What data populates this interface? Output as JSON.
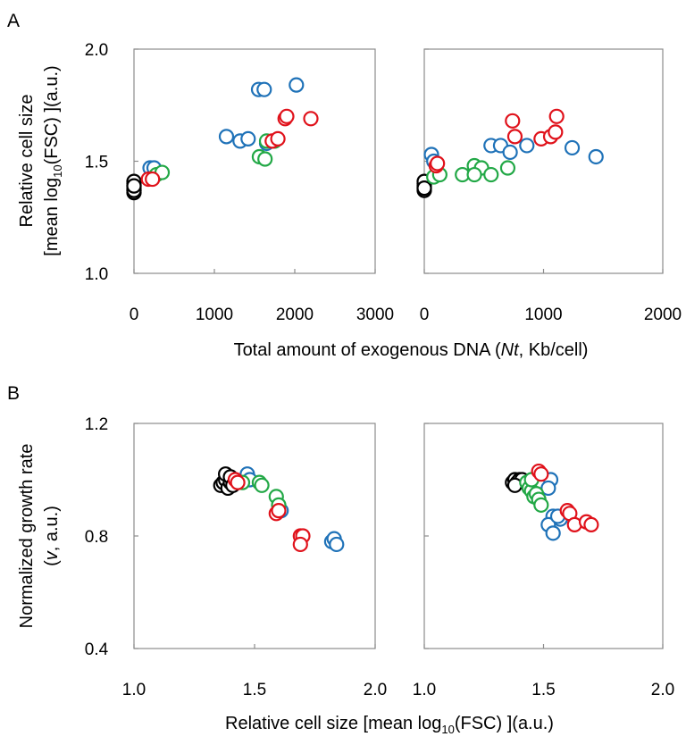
{
  "figure": {
    "panel_a_label": "A",
    "panel_b_label": "B"
  },
  "axis_titles": {
    "a_y_line1": "Relative cell size",
    "a_y_line2_pre": "[mean log",
    "a_y_line2_sub": "10",
    "a_y_line2_post": "(FSC) ](a.u.)",
    "a_x_pre": "Total amount of exogenous DNA (",
    "a_x_italic": "Nt",
    "a_x_post": ", Kb/cell)",
    "b_y_line1": "Normalized growth rate",
    "b_y_line2_pre": "(",
    "b_y_line2_italic": "v",
    "b_y_line2_post": ", a.u.)",
    "b_x_pre": "Relative cell size [mean log",
    "b_x_sub": "10",
    "b_x_post": "(FSC) ](a.u.)"
  },
  "colors": {
    "black": "#000000",
    "blue": "#1f72b8",
    "green": "#22a846",
    "red": "#e0121b",
    "frame": "#8c8c8c"
  },
  "chart_data": [
    {
      "id": "A-left",
      "type": "scatter",
      "xlim": [
        0,
        3000
      ],
      "ylim": [
        1.0,
        2.0
      ],
      "xticks": [
        "0",
        "1000",
        "2000",
        "3000"
      ],
      "yticks": [
        "1.0",
        "1.5",
        "2.0"
      ],
      "grid": false,
      "series": [
        {
          "color": "black",
          "points": [
            [
              0,
              1.36
            ],
            [
              0,
              1.37
            ],
            [
              0,
              1.38
            ],
            [
              0,
              1.39
            ],
            [
              0,
              1.4
            ],
            [
              0,
              1.41
            ],
            [
              0,
              1.37
            ],
            [
              0,
              1.39
            ]
          ]
        },
        {
          "color": "blue",
          "points": [
            [
              200,
              1.47
            ],
            [
              250,
              1.47
            ],
            [
              1150,
              1.61
            ],
            [
              1320,
              1.59
            ],
            [
              1420,
              1.6
            ],
            [
              1550,
              1.82
            ],
            [
              1620,
              1.82
            ],
            [
              2020,
              1.84
            ],
            [
              1650,
              1.58
            ]
          ]
        },
        {
          "color": "green",
          "points": [
            [
              280,
              1.44
            ],
            [
              350,
              1.45
            ],
            [
              1560,
              1.52
            ],
            [
              1630,
              1.51
            ],
            [
              1650,
              1.59
            ],
            [
              1750,
              1.59
            ]
          ]
        },
        {
          "color": "red",
          "points": [
            [
              180,
              1.42
            ],
            [
              230,
              1.42
            ],
            [
              1720,
              1.59
            ],
            [
              1790,
              1.6
            ],
            [
              1880,
              1.69
            ],
            [
              1900,
              1.7
            ],
            [
              2200,
              1.69
            ]
          ]
        }
      ]
    },
    {
      "id": "A-right",
      "type": "scatter",
      "xlim": [
        0,
        2000
      ],
      "ylim": [
        1.0,
        2.0
      ],
      "xticks": [
        "0",
        "1000",
        "2000"
      ],
      "yticks": [
        "1.0",
        "1.5",
        "2.0"
      ],
      "grid": false,
      "series": [
        {
          "color": "black",
          "points": [
            [
              0,
              1.37
            ],
            [
              0,
              1.38
            ],
            [
              0,
              1.39
            ],
            [
              0,
              1.4
            ],
            [
              0,
              1.41
            ],
            [
              0,
              1.38
            ]
          ]
        },
        {
          "color": "blue",
          "points": [
            [
              60,
              1.53
            ],
            [
              80,
              1.5
            ],
            [
              560,
              1.57
            ],
            [
              640,
              1.57
            ],
            [
              720,
              1.54
            ],
            [
              860,
              1.57
            ],
            [
              1240,
              1.56
            ],
            [
              1440,
              1.52
            ]
          ]
        },
        {
          "color": "green",
          "points": [
            [
              80,
              1.43
            ],
            [
              130,
              1.44
            ],
            [
              320,
              1.44
            ],
            [
              420,
              1.48
            ],
            [
              480,
              1.47
            ],
            [
              560,
              1.44
            ],
            [
              700,
              1.47
            ],
            [
              420,
              1.44
            ]
          ]
        },
        {
          "color": "red",
          "points": [
            [
              100,
              1.48
            ],
            [
              110,
              1.49
            ],
            [
              740,
              1.68
            ],
            [
              760,
              1.61
            ],
            [
              980,
              1.6
            ],
            [
              1060,
              1.61
            ],
            [
              1100,
              1.63
            ],
            [
              1110,
              1.7
            ]
          ]
        }
      ]
    },
    {
      "id": "B-left",
      "type": "scatter",
      "xlim": [
        1.0,
        2.0
      ],
      "ylim": [
        0.4,
        1.2
      ],
      "xticks": [
        "1.0",
        "1.5",
        "2.0"
      ],
      "yticks": [
        "0.4",
        "0.8",
        "1.2"
      ],
      "grid": false,
      "series": [
        {
          "color": "black",
          "points": [
            [
              1.36,
              0.98
            ],
            [
              1.37,
              0.99
            ],
            [
              1.38,
              1.0
            ],
            [
              1.38,
              1.02
            ],
            [
              1.39,
              0.97
            ],
            [
              1.4,
              0.99
            ],
            [
              1.4,
              1.01
            ],
            [
              1.41,
              0.98
            ]
          ]
        },
        {
          "color": "blue",
          "points": [
            [
              1.47,
              1.02
            ],
            [
              1.48,
              1.0
            ],
            [
              1.61,
              0.89
            ],
            [
              1.82,
              0.78
            ],
            [
              1.83,
              0.79
            ],
            [
              1.84,
              0.77
            ]
          ]
        },
        {
          "color": "green",
          "points": [
            [
              1.45,
              0.99
            ],
            [
              1.52,
              0.99
            ],
            [
              1.53,
              0.98
            ],
            [
              1.59,
              0.94
            ],
            [
              1.6,
              0.91
            ]
          ]
        },
        {
          "color": "red",
          "points": [
            [
              1.42,
              1.0
            ],
            [
              1.43,
              0.99
            ],
            [
              1.59,
              0.88
            ],
            [
              1.6,
              0.89
            ],
            [
              1.69,
              0.8
            ],
            [
              1.7,
              0.8
            ],
            [
              1.69,
              0.77
            ]
          ]
        }
      ]
    },
    {
      "id": "B-right",
      "type": "scatter",
      "xlim": [
        1.0,
        2.0
      ],
      "ylim": [
        0.4,
        1.2
      ],
      "xticks": [
        "1.0",
        "1.5",
        "2.0"
      ],
      "yticks": [],
      "grid": false,
      "series": [
        {
          "color": "black",
          "points": [
            [
              1.37,
              0.99
            ],
            [
              1.38,
              1.0
            ],
            [
              1.39,
              0.99
            ],
            [
              1.4,
              1.0
            ],
            [
              1.41,
              1.0
            ],
            [
              1.38,
              0.98
            ]
          ]
        },
        {
          "color": "blue",
          "points": [
            [
              1.53,
              1.0
            ],
            [
              1.52,
              0.97
            ],
            [
              1.54,
              0.87
            ],
            [
              1.57,
              0.86
            ],
            [
              1.52,
              0.84
            ],
            [
              1.54,
              0.81
            ],
            [
              1.56,
              0.87
            ]
          ]
        },
        {
          "color": "green",
          "points": [
            [
              1.43,
              0.99
            ],
            [
              1.44,
              0.97
            ],
            [
              1.45,
              0.96
            ],
            [
              1.46,
              0.94
            ],
            [
              1.47,
              0.95
            ],
            [
              1.48,
              0.93
            ],
            [
              1.49,
              0.91
            ],
            [
              1.45,
              1.0
            ]
          ]
        },
        {
          "color": "red",
          "points": [
            [
              1.48,
              1.03
            ],
            [
              1.49,
              1.02
            ],
            [
              1.6,
              0.89
            ],
            [
              1.61,
              0.88
            ],
            [
              1.63,
              0.84
            ],
            [
              1.68,
              0.85
            ],
            [
              1.7,
              0.84
            ]
          ]
        }
      ]
    }
  ]
}
